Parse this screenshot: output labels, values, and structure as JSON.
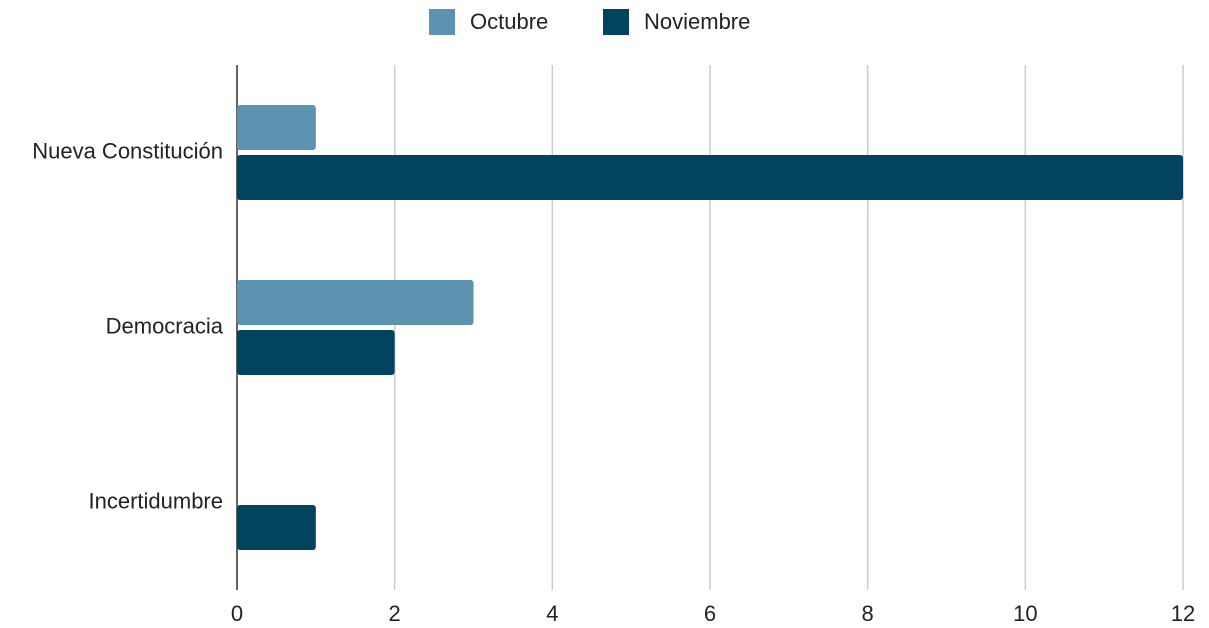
{
  "chart_data": {
    "type": "hbar",
    "categories": [
      "Nueva Constitución",
      "Democracia",
      "Incertidumbre"
    ],
    "series": [
      {
        "name": "Octubre",
        "color": "#5b93b0",
        "values": [
          1,
          3,
          0
        ]
      },
      {
        "name": "Noviembre",
        "color": "#024460",
        "values": [
          12,
          2,
          1
        ]
      }
    ],
    "xlim": [
      0,
      12
    ],
    "xticks": [
      0,
      2,
      4,
      6,
      8,
      10,
      12
    ],
    "grid": true,
    "legend": "top"
  }
}
